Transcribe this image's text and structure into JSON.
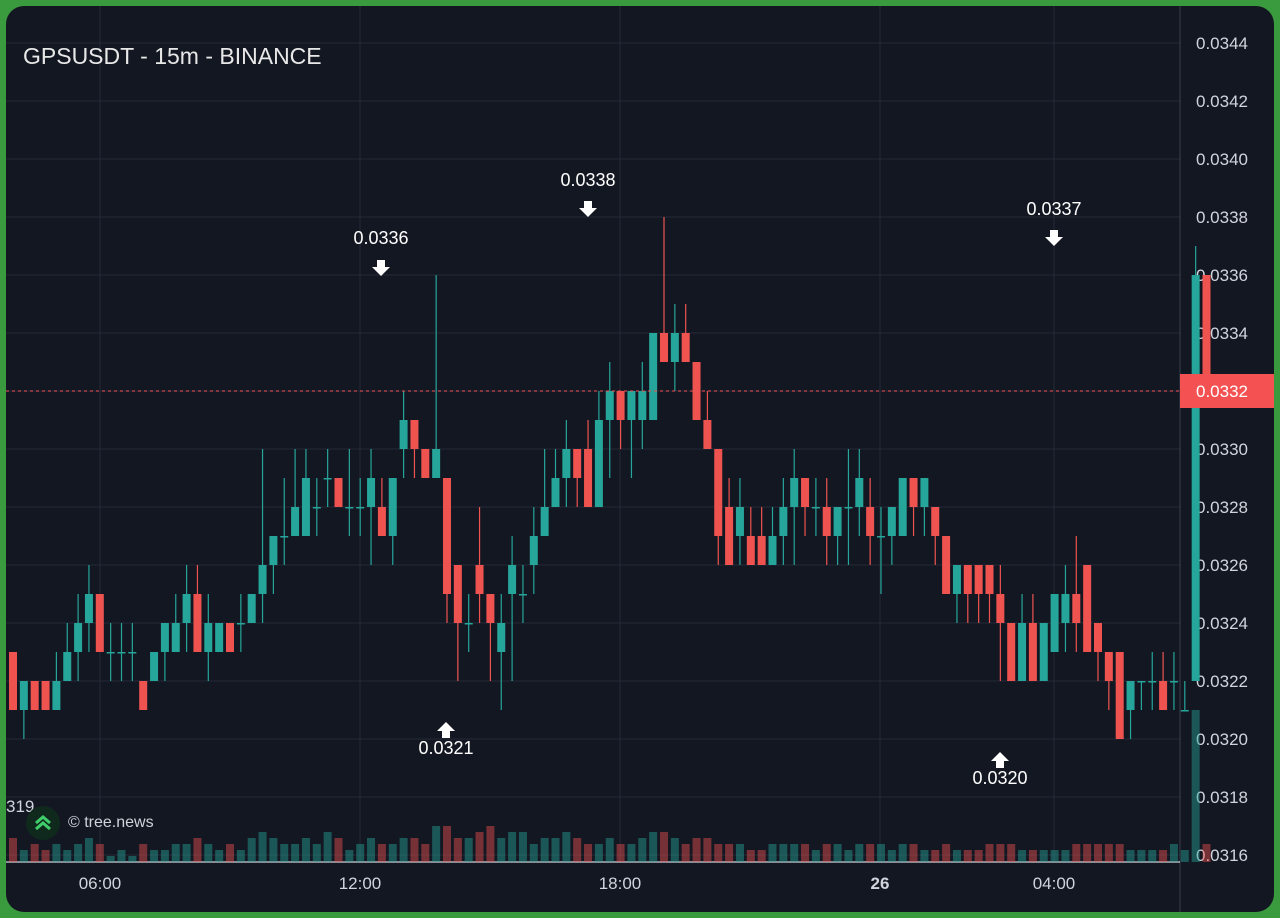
{
  "header": {
    "title": "GPSUSDT - 15m - BINANCE"
  },
  "watermark": {
    "text": "© tree.news",
    "icon": "tree-logo-icon"
  },
  "left_cutoff_label": "319",
  "colors": {
    "up": "#26a69a",
    "down": "#ef5350",
    "background": "#131722",
    "grid": "#242a38",
    "text": "#d1d4dc",
    "last_price": "#f45252"
  },
  "chart_data": {
    "type": "candlestick",
    "title": "GPSUSDT - 15m - BINANCE",
    "ylim": [
      0.03155,
      0.03449
    ],
    "y_ticks": [
      "0.0344",
      "0.0342",
      "0.0340",
      "0.0338",
      "0.0336",
      "0.0334",
      "0.0332",
      "0.0330",
      "0.0328",
      "0.0326",
      "0.0324",
      "0.0322",
      "0.0320",
      "0.0318",
      "0.0316"
    ],
    "x_ticks": [
      {
        "label": "06:00",
        "bold": false
      },
      {
        "label": "12:00",
        "bold": false
      },
      {
        "label": "18:00",
        "bold": false
      },
      {
        "label": "26",
        "bold": true
      },
      {
        "label": "04:00",
        "bold": false
      }
    ],
    "last_price": "0.0332",
    "annotations": [
      {
        "label": "0.0336",
        "type": "high"
      },
      {
        "label": "0.0321",
        "type": "low"
      },
      {
        "label": "0.0338",
        "type": "high"
      },
      {
        "label": "0.0337",
        "type": "high"
      },
      {
        "label": "0.0320",
        "type": "low"
      }
    ],
    "candles": [
      [
        0.0323,
        0.0321,
        0.0323,
        0.0321,
        4
      ],
      [
        0.0321,
        0.0322,
        0.0322,
        0.032,
        2
      ],
      [
        0.0322,
        0.0321,
        0.0322,
        0.0321,
        3
      ],
      [
        0.0322,
        0.0321,
        0.0322,
        0.0321,
        2
      ],
      [
        0.0321,
        0.0322,
        0.0323,
        0.0321,
        3
      ],
      [
        0.0322,
        0.0323,
        0.0324,
        0.0322,
        2
      ],
      [
        0.0323,
        0.0324,
        0.0325,
        0.0322,
        3
      ],
      [
        0.0324,
        0.0325,
        0.0326,
        0.0323,
        4
      ],
      [
        0.0325,
        0.0323,
        0.0325,
        0.0323,
        3
      ],
      [
        0.0323,
        0.0323,
        0.0324,
        0.0322,
        1
      ],
      [
        0.0323,
        0.0323,
        0.0324,
        0.0322,
        2
      ],
      [
        0.0323,
        0.0323,
        0.0324,
        0.0322,
        1
      ],
      [
        0.0322,
        0.0321,
        0.0322,
        0.0321,
        3
      ],
      [
        0.0322,
        0.0323,
        0.0323,
        0.0322,
        2
      ],
      [
        0.0323,
        0.0324,
        0.0324,
        0.0322,
        2
      ],
      [
        0.0323,
        0.0324,
        0.0325,
        0.0323,
        3
      ],
      [
        0.0324,
        0.0325,
        0.0326,
        0.0323,
        3
      ],
      [
        0.0325,
        0.0323,
        0.0326,
        0.0323,
        4
      ],
      [
        0.0323,
        0.0324,
        0.0325,
        0.0322,
        3
      ],
      [
        0.0323,
        0.0324,
        0.0324,
        0.0323,
        2
      ],
      [
        0.0324,
        0.0323,
        0.0324,
        0.0323,
        3
      ],
      [
        0.0324,
        0.0324,
        0.0325,
        0.0323,
        2
      ],
      [
        0.0324,
        0.0325,
        0.0325,
        0.0324,
        4
      ],
      [
        0.0325,
        0.0326,
        0.033,
        0.0324,
        5
      ],
      [
        0.0326,
        0.0327,
        0.0327,
        0.0325,
        4
      ],
      [
        0.0327,
        0.0327,
        0.0329,
        0.0326,
        3
      ],
      [
        0.0327,
        0.0328,
        0.033,
        0.0327,
        3
      ],
      [
        0.0327,
        0.0329,
        0.033,
        0.0327,
        4
      ],
      [
        0.0328,
        0.0328,
        0.0329,
        0.0327,
        3
      ],
      [
        0.0329,
        0.0329,
        0.033,
        0.0328,
        5
      ],
      [
        0.0329,
        0.0328,
        0.0329,
        0.0328,
        4
      ],
      [
        0.0328,
        0.0328,
        0.033,
        0.0327,
        2
      ],
      [
        0.0328,
        0.0328,
        0.0329,
        0.0327,
        3
      ],
      [
        0.0328,
        0.0329,
        0.033,
        0.0326,
        4
      ],
      [
        0.0328,
        0.0327,
        0.0329,
        0.0327,
        3
      ],
      [
        0.0327,
        0.0329,
        0.0329,
        0.0326,
        3
      ],
      [
        0.033,
        0.0331,
        0.0332,
        0.0329,
        4
      ],
      [
        0.0331,
        0.033,
        0.0331,
        0.0329,
        4
      ],
      [
        0.033,
        0.0329,
        0.033,
        0.0329,
        3
      ],
      [
        0.0329,
        0.033,
        0.0336,
        0.0329,
        6
      ],
      [
        0.0329,
        0.0325,
        0.0329,
        0.0324,
        6
      ],
      [
        0.0326,
        0.0324,
        0.0326,
        0.0322,
        4
      ],
      [
        0.0324,
        0.0324,
        0.0325,
        0.0323,
        4
      ],
      [
        0.0326,
        0.0325,
        0.0328,
        0.0324,
        5
      ],
      [
        0.0325,
        0.0324,
        0.0325,
        0.0322,
        6
      ],
      [
        0.0323,
        0.0324,
        0.0325,
        0.0321,
        4
      ],
      [
        0.0325,
        0.0326,
        0.0327,
        0.0322,
        5
      ],
      [
        0.0325,
        0.0325,
        0.0326,
        0.0324,
        5
      ],
      [
        0.0326,
        0.0327,
        0.0328,
        0.0325,
        3
      ],
      [
        0.0327,
        0.0328,
        0.033,
        0.0327,
        4
      ],
      [
        0.0328,
        0.0329,
        0.033,
        0.0328,
        4
      ],
      [
        0.0329,
        0.033,
        0.0331,
        0.0328,
        5
      ],
      [
        0.033,
        0.0329,
        0.033,
        0.0328,
        4
      ],
      [
        0.033,
        0.0328,
        0.0331,
        0.0328,
        3
      ],
      [
        0.0328,
        0.0331,
        0.0332,
        0.0328,
        3
      ],
      [
        0.0331,
        0.0332,
        0.0333,
        0.0329,
        4
      ],
      [
        0.0332,
        0.0331,
        0.0332,
        0.033,
        3
      ],
      [
        0.0331,
        0.0332,
        0.0332,
        0.0329,
        3
      ],
      [
        0.0331,
        0.0332,
        0.0333,
        0.033,
        4
      ],
      [
        0.0331,
        0.0334,
        0.0334,
        0.0331,
        5
      ],
      [
        0.0334,
        0.0333,
        0.0338,
        0.0333,
        5
      ],
      [
        0.0333,
        0.0334,
        0.0335,
        0.0332,
        4
      ],
      [
        0.0334,
        0.0333,
        0.0335,
        0.0333,
        3
      ],
      [
        0.0333,
        0.0331,
        0.0333,
        0.0331,
        4
      ],
      [
        0.0331,
        0.033,
        0.0332,
        0.033,
        4
      ],
      [
        0.033,
        0.0327,
        0.033,
        0.0326,
        3
      ],
      [
        0.0328,
        0.0326,
        0.0329,
        0.0326,
        3
      ],
      [
        0.0327,
        0.0328,
        0.0329,
        0.0326,
        3
      ],
      [
        0.0327,
        0.0326,
        0.0328,
        0.0326,
        2
      ],
      [
        0.0327,
        0.0326,
        0.0328,
        0.0326,
        2
      ],
      [
        0.0326,
        0.0327,
        0.0328,
        0.0326,
        3
      ],
      [
        0.0327,
        0.0328,
        0.0329,
        0.0326,
        3
      ],
      [
        0.0328,
        0.0329,
        0.033,
        0.0326,
        3
      ],
      [
        0.0329,
        0.0328,
        0.0329,
        0.0327,
        3
      ],
      [
        0.0328,
        0.0328,
        0.0329,
        0.0327,
        2
      ],
      [
        0.0328,
        0.0327,
        0.0329,
        0.0326,
        3
      ],
      [
        0.0327,
        0.0328,
        0.0328,
        0.0326,
        3
      ],
      [
        0.0328,
        0.0328,
        0.033,
        0.0326,
        2
      ],
      [
        0.0328,
        0.0329,
        0.033,
        0.0327,
        3
      ],
      [
        0.0328,
        0.0327,
        0.0329,
        0.0326,
        3
      ],
      [
        0.0327,
        0.0327,
        0.0328,
        0.0325,
        3
      ],
      [
        0.0327,
        0.0328,
        0.0328,
        0.0326,
        2
      ],
      [
        0.0327,
        0.0329,
        0.0329,
        0.0327,
        3
      ],
      [
        0.0329,
        0.0328,
        0.0329,
        0.0327,
        3
      ],
      [
        0.0328,
        0.0329,
        0.0329,
        0.0327,
        2
      ],
      [
        0.0328,
        0.0327,
        0.0328,
        0.0326,
        2
      ],
      [
        0.0327,
        0.0325,
        0.0327,
        0.0325,
        3
      ],
      [
        0.0325,
        0.0326,
        0.0326,
        0.0324,
        2
      ],
      [
        0.0326,
        0.0325,
        0.0326,
        0.0324,
        2
      ],
      [
        0.0326,
        0.0325,
        0.0326,
        0.0324,
        2
      ],
      [
        0.0326,
        0.0325,
        0.0326,
        0.0324,
        3
      ],
      [
        0.0325,
        0.0324,
        0.0326,
        0.0322,
        3
      ],
      [
        0.0324,
        0.0322,
        0.0324,
        0.0322,
        3
      ],
      [
        0.0322,
        0.0324,
        0.0325,
        0.0322,
        2
      ],
      [
        0.0324,
        0.0322,
        0.0325,
        0.0322,
        2
      ],
      [
        0.0322,
        0.0324,
        0.0324,
        0.0322,
        2
      ],
      [
        0.0323,
        0.0325,
        0.0325,
        0.0323,
        2
      ],
      [
        0.0324,
        0.0325,
        0.0326,
        0.0323,
        2
      ],
      [
        0.0325,
        0.0324,
        0.0327,
        0.0323,
        3
      ],
      [
        0.0326,
        0.0323,
        0.0326,
        0.0323,
        3
      ],
      [
        0.0324,
        0.0323,
        0.0324,
        0.0322,
        3
      ],
      [
        0.0323,
        0.0322,
        0.0323,
        0.0321,
        3
      ],
      [
        0.0323,
        0.032,
        0.0323,
        0.032,
        3
      ],
      [
        0.0321,
        0.0322,
        0.0322,
        0.032,
        2
      ],
      [
        0.0322,
        0.0322,
        0.0322,
        0.0321,
        2
      ],
      [
        0.0322,
        0.0322,
        0.0323,
        0.0321,
        2
      ],
      [
        0.0322,
        0.0321,
        0.0323,
        0.0321,
        2
      ],
      [
        0.0322,
        0.0322,
        0.0323,
        0.0321,
        3
      ],
      [
        0.0321,
        0.0321,
        0.0322,
        0.0321,
        2
      ],
      [
        0.0322,
        0.0336,
        0.0337,
        0.0322,
        40
      ],
      [
        0.0336,
        0.0332,
        0.0336,
        0.0332,
        3
      ]
    ]
  }
}
